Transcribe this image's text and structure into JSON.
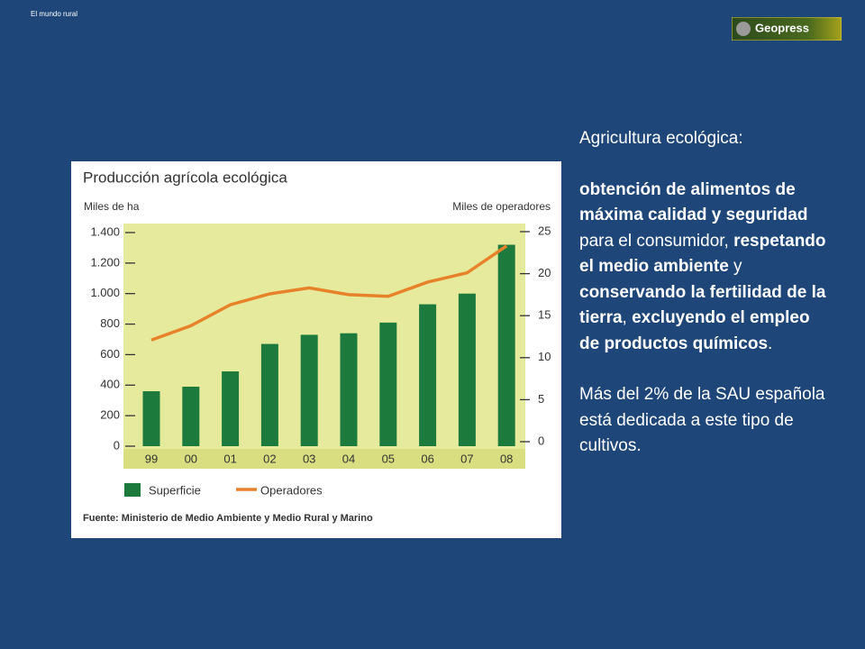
{
  "header": {
    "label": "El mundo rural",
    "logo": "Geopress"
  },
  "chart_data": {
    "type": "bar",
    "title": "Producción agrícola ecológica",
    "y_label": "Miles de ha",
    "y2_label": "Miles de  operadores",
    "categories": [
      "99",
      "00",
      "01",
      "02",
      "03",
      "04",
      "05",
      "06",
      "07",
      "08"
    ],
    "series": [
      {
        "name": "Superficie",
        "type": "bar",
        "color": "#1b7a3c",
        "values": [
          360,
          390,
          490,
          670,
          730,
          740,
          810,
          930,
          1000,
          1320
        ]
      },
      {
        "name": "Operadores",
        "type": "line",
        "axis": "y2",
        "color": "#e8822a",
        "values": [
          12.1,
          13.8,
          16.3,
          17.6,
          18.3,
          17.5,
          17.3,
          19.0,
          20.1,
          23.3
        ]
      }
    ],
    "ylim": [
      0,
      1400
    ],
    "yticks": [
      0,
      200,
      400,
      600,
      800,
      {
        "value": 1000,
        "label": "1.000"
      },
      {
        "value": 1200,
        "label": "1.200"
      },
      {
        "value": 1400,
        "label": "1.400"
      }
    ],
    "y2lim": [
      0,
      25
    ],
    "y2ticks": [
      0,
      5,
      10,
      15,
      20,
      25
    ],
    "source": "Fuente: Ministerio de Medio Ambiente y Medio Rural y Marino"
  },
  "text": {
    "paragraphs": [
      [
        {
          "text": "Agricultura ecológica:",
          "bold": false
        }
      ],
      [
        {
          "text": "obtención de alimentos de máxima calidad y seguridad",
          "bold": true
        },
        {
          "text": " para el consumidor, ",
          "bold": false
        },
        {
          "text": "respetando el medio ambiente",
          "bold": true
        },
        {
          "text": " y ",
          "bold": false
        },
        {
          "text": "conservando la fertilidad de la tierra",
          "bold": true
        },
        {
          "text": ", ",
          "bold": false
        },
        {
          "text": "excluyendo el empleo de productos químicos",
          "bold": true
        },
        {
          "text": ".",
          "bold": false
        }
      ],
      [
        {
          "text": "Más del 2% de la SAU española está dedicada a este tipo de cultivos.",
          "bold": false
        }
      ]
    ]
  }
}
